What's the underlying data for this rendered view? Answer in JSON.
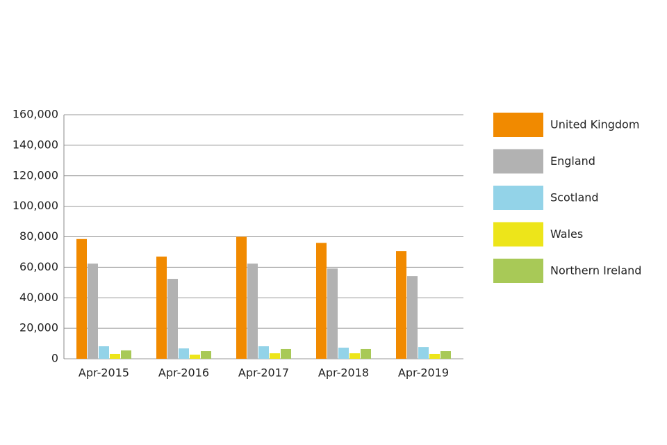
{
  "chart_data": {
    "type": "bar",
    "categories": [
      "Apr-2015",
      "Apr-2016",
      "Apr-2017",
      "Apr-2018",
      "Apr-2019"
    ],
    "series": [
      {
        "name": "United Kingdom",
        "color": "#f18a00",
        "values": [
          78500,
          67000,
          80000,
          76000,
          70600
        ]
      },
      {
        "name": "England",
        "color": "#b2b2b2",
        "values": [
          62400,
          52400,
          62400,
          59200,
          54200
        ]
      },
      {
        "name": "Scotland",
        "color": "#93d3e8",
        "values": [
          8200,
          6800,
          8200,
          7300,
          7700
        ]
      },
      {
        "name": "Wales",
        "color": "#ede51a",
        "values": [
          3200,
          2700,
          3600,
          3600,
          3200
        ]
      },
      {
        "name": "Northern Ireland",
        "color": "#a8c957",
        "values": [
          5500,
          5000,
          6400,
          6400,
          5000
        ]
      }
    ],
    "ylim": [
      0,
      160000
    ],
    "yticks": [
      0,
      {
        "value": 20000,
        "label": "20,000"
      },
      {
        "value": 40000,
        "label": "40,000"
      },
      {
        "value": 60000,
        "label": "60,000"
      },
      {
        "value": 80000,
        "label": "80,000"
      },
      {
        "value": 100000,
        "label": "100,000"
      },
      {
        "value": 120000,
        "label": "120,000"
      },
      {
        "value": 140000,
        "label": "140,000"
      },
      {
        "value": 160000,
        "label": "160,000"
      }
    ],
    "grid": true,
    "legend": "right"
  }
}
